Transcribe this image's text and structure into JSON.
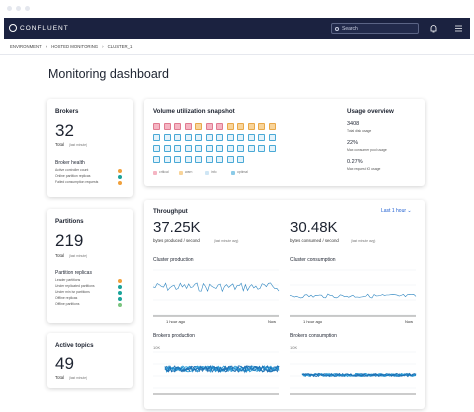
{
  "header": {
    "logo": "CONFLUENT",
    "search": "Search"
  },
  "breadcrumb": [
    "ENVIRONMENT",
    "HOSTED MONITORING",
    "CLUSTER_1"
  ],
  "page_title": "Monitoring dashboard",
  "brokers": {
    "title": "Brokers",
    "value": 32,
    "total": "Total",
    "period": "(last minute)",
    "health_title": "Broker health",
    "health_items": [
      "Active controller count",
      "Online partition replicas",
      "Failed consumption requests"
    ]
  },
  "volume": {
    "title": "Volume utilization snapshot",
    "legend": [
      "critical",
      "warn",
      "info",
      "optimal"
    ]
  },
  "usage": {
    "title": "Usage overview",
    "items": [
      {
        "value": "3408",
        "label": "Total disk usage"
      },
      {
        "value": "22%",
        "label": "Max consumer pool usage"
      },
      {
        "value": "0.27%",
        "label": "Max request IO usage"
      }
    ]
  },
  "partitions": {
    "title": "Partitions",
    "value": 219,
    "total": "Total",
    "period": "(last minute)",
    "replicas_title": "Partition replicas",
    "items": [
      "Leader partitions",
      "Under replicated partitions",
      "Under min isr partitions",
      "Offline replicas",
      "Offline partitions"
    ]
  },
  "topics": {
    "title": "Active topics",
    "value": 49,
    "total": "Total",
    "period": "(last minute)"
  },
  "throughput": {
    "title": "Throughput",
    "range": "Last 1 hour",
    "produced": {
      "value": "37.25K",
      "label": "bytes produced / second",
      "period": "(last minute avg)"
    },
    "consumed": {
      "value": "30.48K",
      "label": "bytes consumed / second",
      "period": "(last minute avg)"
    },
    "cluster_production": {
      "title": "Cluster production",
      "start": "1 hour ago",
      "end": "Now"
    },
    "cluster_consumption": {
      "title": "Cluster consumption",
      "start": "1 hour ago",
      "end": "Now"
    },
    "brokers_production": {
      "title": "Brokers production",
      "axis": "10K"
    },
    "brokers_consumption": {
      "title": "Brokers consumption",
      "axis": "10K"
    }
  }
}
